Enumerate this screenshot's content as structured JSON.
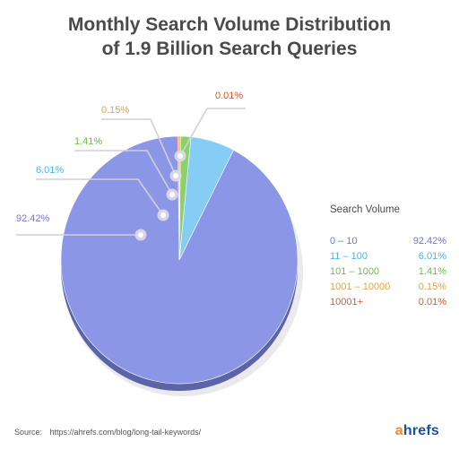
{
  "title_lines": [
    "Monthly Search Volume Distribution",
    "of 1.9 Billion Search Queries"
  ],
  "chart_data": {
    "type": "pie",
    "title": "Monthly Search Volume Distribution of 1.9 Billion Search Queries",
    "legend_title": "Search Volume",
    "legend_position": "right",
    "categories": [
      "0 – 10",
      "11 – 100",
      "101 – 1000",
      "1001 – 10000",
      "10001+"
    ],
    "values": [
      92.42,
      6.01,
      1.41,
      0.15,
      0.01
    ],
    "labels": [
      "92.42%",
      "6.01%",
      "1.41%",
      "0.15%",
      "0.01%"
    ],
    "colors": [
      "#8b96e6",
      "#86cdf5",
      "#8cd26a",
      "#f5b565",
      "#ee6b4d"
    ],
    "label_colors": [
      "#6f79d0",
      "#4fb3ea",
      "#6cbf44",
      "#e8a23f",
      "#e4552f"
    ]
  },
  "footer": {
    "source_label": "Source:",
    "source_url": "https://ahrefs.com/blog/long-tail-keywords/"
  },
  "logo": {
    "first": "a",
    "rest": "hrefs"
  }
}
